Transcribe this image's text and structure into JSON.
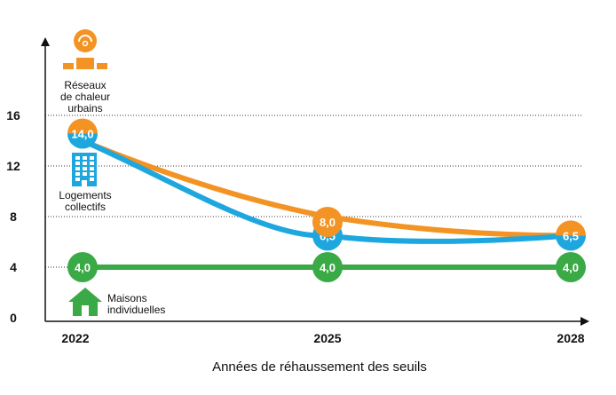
{
  "chart_data": {
    "type": "line",
    "xlabel": "Années de réhaussement des seuils",
    "ylabel": "",
    "categories": [
      "2022",
      "2025",
      "2028"
    ],
    "yticks": [
      "0",
      "4",
      "8",
      "12",
      "16"
    ],
    "ylim": [
      0,
      20
    ],
    "grid": "dotted horizontal",
    "series": [
      {
        "name": "Réseaux de chaleur urbains",
        "color": "#F39323",
        "icon": "district-heating-icon",
        "values": [
          14.0,
          8.0,
          6.5
        ],
        "labels": [
          "14,0",
          "8,0",
          "6,5"
        ]
      },
      {
        "name": "Logements collectifs",
        "color": "#1EA7DE",
        "icon": "apartment-building-icon",
        "values": [
          14.0,
          6.5,
          6.5
        ],
        "labels": [
          "14,0",
          "6,5",
          "6,5"
        ]
      },
      {
        "name": "Maisons individuelles",
        "color": "#3AAA46",
        "icon": "house-icon",
        "values": [
          4.0,
          4.0,
          4.0
        ],
        "labels": [
          "4,0",
          "4,0",
          "4,0"
        ]
      }
    ],
    "legend": {
      "heating": [
        "Réseaux",
        "de chaleur",
        "urbains"
      ],
      "collective": [
        "Logements",
        "collectifs"
      ],
      "houses": [
        "Maisons",
        "individuelles"
      ]
    }
  }
}
